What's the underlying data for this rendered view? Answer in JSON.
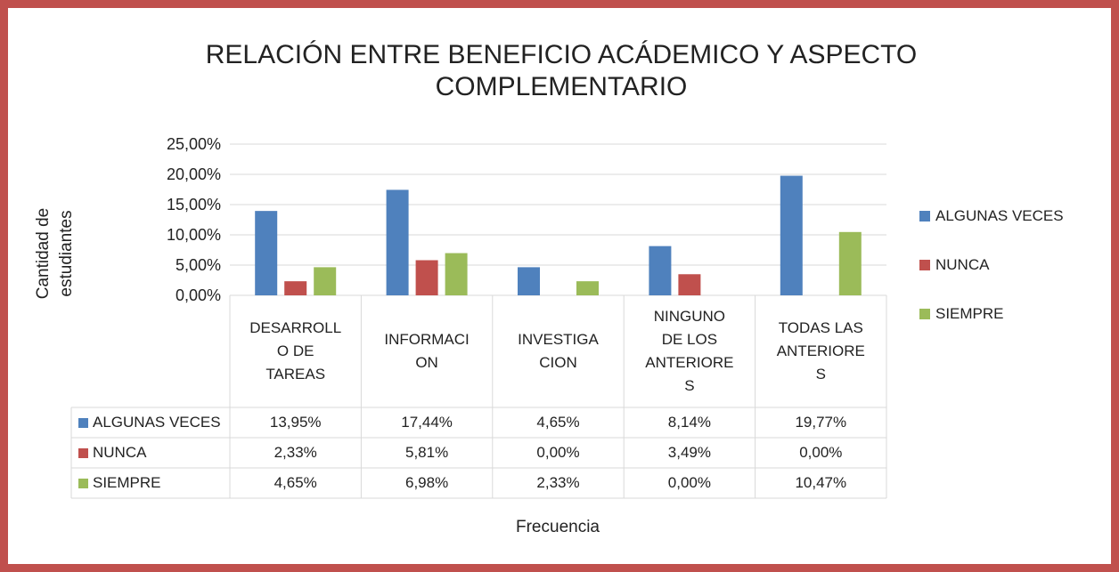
{
  "chart_data": {
    "type": "bar",
    "title": "RELACIÓN ENTRE BENEFICIO ACÁDEMICO Y ASPECTO COMPLEMENTARIO",
    "y_label": "Cantidad de estudiantes",
    "x_label": "Frecuencia",
    "categories": [
      "DESARROLL\nO DE\nTAREAS",
      "INFORMACI\nON",
      "INVESTIGA\nCION",
      "NINGUNO\nDE LOS\nANTERIORE\nS",
      "TODAS LAS\nANTERIORE\nS"
    ],
    "series": [
      {
        "name": "ALGUNAS VECES",
        "color": "#4f81bd",
        "values": [
          13.95,
          17.44,
          4.65,
          8.14,
          19.77
        ],
        "value_labels": [
          "13,95%",
          "17,44%",
          "4,65%",
          "8,14%",
          "19,77%"
        ]
      },
      {
        "name": "NUNCA",
        "color": "#c0504d",
        "values": [
          2.33,
          5.81,
          0,
          3.49,
          0
        ],
        "value_labels": [
          "2,33%",
          "5,81%",
          "0,00%",
          "3,49%",
          "0,00%"
        ]
      },
      {
        "name": "SIEMPRE",
        "color": "#9bbb59",
        "values": [
          4.65,
          6.98,
          2.33,
          0,
          10.47
        ],
        "value_labels": [
          "4,65%",
          "6,98%",
          "2,33%",
          "0,00%",
          "10,47%"
        ]
      }
    ],
    "ylim": [
      0,
      25
    ],
    "yticks": [
      {
        "value": 0,
        "label": "0,00%"
      },
      {
        "value": 5,
        "label": "5,00%"
      },
      {
        "value": 10,
        "label": "10,00%"
      },
      {
        "value": 15,
        "label": "15,00%"
      },
      {
        "value": 20,
        "label": "20,00%"
      },
      {
        "value": 25,
        "label": "25,00%"
      }
    ],
    "grid": true,
    "legend": "right"
  }
}
